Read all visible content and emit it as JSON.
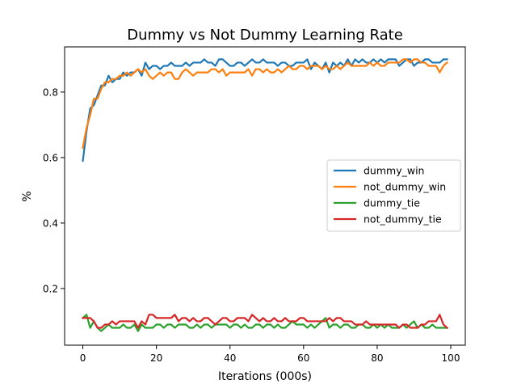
{
  "chart_data": {
    "type": "line",
    "title": "Dummy vs Not Dummy Learning Rate",
    "xlabel": "Iterations (000s)",
    "ylabel": "%",
    "xlim": [
      -4.95,
      103.95
    ],
    "ylim": [
      0.027,
      0.938
    ],
    "xticks": [
      0,
      20,
      40,
      60,
      80,
      100
    ],
    "yticks": [
      0.2,
      0.4,
      0.6,
      0.8
    ],
    "grid": false,
    "legend_position": "center right",
    "x": [
      0,
      1,
      2,
      3,
      4,
      5,
      6,
      7,
      8,
      9,
      10,
      11,
      12,
      13,
      14,
      15,
      16,
      17,
      18,
      19,
      20,
      21,
      22,
      23,
      24,
      25,
      26,
      27,
      28,
      29,
      30,
      31,
      32,
      33,
      34,
      35,
      36,
      37,
      38,
      39,
      40,
      41,
      42,
      43,
      44,
      45,
      46,
      47,
      48,
      49,
      50,
      51,
      52,
      53,
      54,
      55,
      56,
      57,
      58,
      59,
      60,
      61,
      62,
      63,
      64,
      65,
      66,
      67,
      68,
      69,
      70,
      71,
      72,
      73,
      74,
      75,
      76,
      77,
      78,
      79,
      80,
      81,
      82,
      83,
      84,
      85,
      86,
      87,
      88,
      89,
      90,
      91,
      92,
      93,
      94,
      95,
      96,
      97,
      98,
      99
    ],
    "series": [
      {
        "name": "dummy_win",
        "color": "#1f77b4",
        "values": [
          0.59,
          0.68,
          0.75,
          0.76,
          0.79,
          0.82,
          0.82,
          0.85,
          0.83,
          0.84,
          0.84,
          0.86,
          0.85,
          0.86,
          0.86,
          0.87,
          0.85,
          0.89,
          0.87,
          0.88,
          0.88,
          0.87,
          0.88,
          0.88,
          0.89,
          0.88,
          0.88,
          0.88,
          0.89,
          0.88,
          0.89,
          0.89,
          0.89,
          0.9,
          0.89,
          0.89,
          0.88,
          0.9,
          0.9,
          0.89,
          0.88,
          0.88,
          0.89,
          0.89,
          0.88,
          0.89,
          0.9,
          0.89,
          0.89,
          0.9,
          0.89,
          0.89,
          0.89,
          0.88,
          0.89,
          0.89,
          0.88,
          0.88,
          0.89,
          0.89,
          0.89,
          0.9,
          0.87,
          0.89,
          0.88,
          0.87,
          0.89,
          0.86,
          0.89,
          0.88,
          0.89,
          0.88,
          0.9,
          0.88,
          0.9,
          0.89,
          0.9,
          0.89,
          0.89,
          0.9,
          0.89,
          0.9,
          0.89,
          0.9,
          0.9,
          0.9,
          0.88,
          0.89,
          0.9,
          0.9,
          0.88,
          0.89,
          0.89,
          0.9,
          0.9,
          0.89,
          0.89,
          0.89,
          0.9,
          0.9
        ]
      },
      {
        "name": "not_dummy_win",
        "color": "#ff7f0e",
        "values": [
          0.63,
          0.69,
          0.73,
          0.78,
          0.78,
          0.81,
          0.83,
          0.83,
          0.84,
          0.84,
          0.85,
          0.85,
          0.86,
          0.85,
          0.86,
          0.87,
          0.86,
          0.87,
          0.85,
          0.84,
          0.85,
          0.86,
          0.85,
          0.86,
          0.86,
          0.84,
          0.84,
          0.86,
          0.87,
          0.86,
          0.85,
          0.86,
          0.86,
          0.86,
          0.86,
          0.87,
          0.87,
          0.86,
          0.87,
          0.85,
          0.86,
          0.86,
          0.86,
          0.86,
          0.86,
          0.87,
          0.85,
          0.87,
          0.87,
          0.86,
          0.87,
          0.86,
          0.86,
          0.87,
          0.86,
          0.87,
          0.88,
          0.87,
          0.87,
          0.88,
          0.88,
          0.87,
          0.88,
          0.88,
          0.88,
          0.87,
          0.88,
          0.87,
          0.87,
          0.88,
          0.87,
          0.88,
          0.89,
          0.88,
          0.88,
          0.88,
          0.88,
          0.88,
          0.89,
          0.88,
          0.89,
          0.88,
          0.88,
          0.89,
          0.89,
          0.89,
          0.89,
          0.9,
          0.9,
          0.89,
          0.9,
          0.9,
          0.89,
          0.89,
          0.88,
          0.88,
          0.88,
          0.86,
          0.88,
          0.89
        ]
      },
      {
        "name": "dummy_tie",
        "color": "#2ca02c",
        "values": [
          0.11,
          0.12,
          0.08,
          0.1,
          0.08,
          0.07,
          0.08,
          0.09,
          0.08,
          0.08,
          0.08,
          0.09,
          0.08,
          0.08,
          0.09,
          0.07,
          0.09,
          0.08,
          0.08,
          0.08,
          0.09,
          0.09,
          0.08,
          0.09,
          0.09,
          0.08,
          0.09,
          0.09,
          0.09,
          0.08,
          0.08,
          0.09,
          0.08,
          0.09,
          0.09,
          0.08,
          0.09,
          0.09,
          0.09,
          0.09,
          0.08,
          0.09,
          0.09,
          0.08,
          0.09,
          0.08,
          0.08,
          0.09,
          0.09,
          0.08,
          0.09,
          0.09,
          0.08,
          0.09,
          0.08,
          0.08,
          0.09,
          0.1,
          0.09,
          0.09,
          0.09,
          0.08,
          0.09,
          0.08,
          0.09,
          0.1,
          0.11,
          0.08,
          0.09,
          0.09,
          0.08,
          0.09,
          0.09,
          0.08,
          0.08,
          0.09,
          0.09,
          0.08,
          0.08,
          0.09,
          0.08,
          0.09,
          0.08,
          0.09,
          0.08,
          0.08,
          0.08,
          0.09,
          0.08,
          0.09,
          0.1,
          0.08,
          0.09,
          0.08,
          0.08,
          0.09,
          0.08,
          0.08,
          0.08,
          0.08
        ]
      },
      {
        "name": "not_dummy_tie",
        "color": "#d62728",
        "values": [
          0.11,
          0.11,
          0.11,
          0.1,
          0.08,
          0.08,
          0.09,
          0.09,
          0.1,
          0.09,
          0.1,
          0.1,
          0.1,
          0.1,
          0.1,
          0.08,
          0.1,
          0.09,
          0.12,
          0.12,
          0.11,
          0.11,
          0.11,
          0.11,
          0.11,
          0.12,
          0.1,
          0.11,
          0.11,
          0.1,
          0.11,
          0.1,
          0.1,
          0.11,
          0.11,
          0.1,
          0.09,
          0.1,
          0.11,
          0.11,
          0.1,
          0.1,
          0.11,
          0.11,
          0.11,
          0.1,
          0.12,
          0.11,
          0.1,
          0.11,
          0.1,
          0.1,
          0.11,
          0.1,
          0.1,
          0.11,
          0.1,
          0.1,
          0.1,
          0.11,
          0.11,
          0.1,
          0.1,
          0.1,
          0.1,
          0.1,
          0.1,
          0.11,
          0.1,
          0.11,
          0.11,
          0.1,
          0.1,
          0.1,
          0.09,
          0.09,
          0.09,
          0.1,
          0.09,
          0.09,
          0.09,
          0.09,
          0.09,
          0.09,
          0.09,
          0.09,
          0.08,
          0.09,
          0.09,
          0.08,
          0.08,
          0.08,
          0.09,
          0.09,
          0.1,
          0.1,
          0.1,
          0.12,
          0.09,
          0.08
        ]
      }
    ]
  }
}
